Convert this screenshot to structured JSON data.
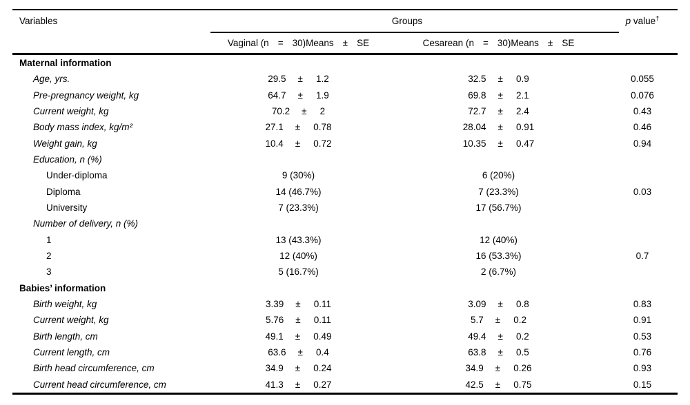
{
  "table": {
    "pm": "±",
    "header": {
      "variables_label": "Variables",
      "groups_label": "Groups",
      "p_italic": "p",
      "p_rest": " value",
      "p_sup": "†",
      "vaginal_parts": [
        "Vaginal (n",
        "=",
        "30)Means",
        "±",
        "SE"
      ],
      "cesarean_parts": [
        "Cesarean (n",
        "=",
        "30)Means",
        "±",
        "SE"
      ]
    },
    "rows": [
      {
        "label": "Maternal information",
        "style": "section",
        "indent": 0,
        "vaginal": null,
        "cesarean": null,
        "p": ""
      },
      {
        "label": "Age, yrs.",
        "style": "var",
        "indent": 1,
        "vaginal": {
          "mean": "29.5",
          "se": "1.2"
        },
        "cesarean": {
          "mean": "32.5",
          "se": "0.9"
        },
        "p": "0.055"
      },
      {
        "label": "Pre-pregnancy weight, kg",
        "style": "var",
        "indent": 1,
        "vaginal": {
          "mean": "64.7",
          "se": "1.9"
        },
        "cesarean": {
          "mean": "69.8",
          "se": "2.1"
        },
        "p": "0.076"
      },
      {
        "label": "Current weight, kg",
        "style": "var",
        "indent": 1,
        "vaginal": {
          "mean": "70.2",
          "se": "2"
        },
        "cesarean": {
          "mean": "72.7",
          "se": "2.4"
        },
        "p": "0.43"
      },
      {
        "label": "Body mass index, kg/m²",
        "style": "var",
        "indent": 1,
        "vaginal": {
          "mean": "27.1",
          "se": "0.78"
        },
        "cesarean": {
          "mean": "28.04",
          "se": "0.91"
        },
        "p": "0.46"
      },
      {
        "label": "Weight gain, kg",
        "style": "var",
        "indent": 1,
        "vaginal": {
          "mean": "10.4",
          "se": "0.72"
        },
        "cesarean": {
          "mean": "10.35",
          "se": "0.47"
        },
        "p": "0.94"
      },
      {
        "label": "Education, n (%)",
        "style": "var",
        "indent": 1,
        "vaginal": null,
        "cesarean": null,
        "p": ""
      },
      {
        "label": "Under-diploma",
        "style": "plain",
        "indent": 2,
        "vaginal": "9 (30%)",
        "cesarean": "6 (20%)",
        "p": ""
      },
      {
        "label": "Diploma",
        "style": "plain",
        "indent": 2,
        "vaginal": "14 (46.7%)",
        "cesarean": "7 (23.3%)",
        "p": "0.03"
      },
      {
        "label": "University",
        "style": "plain",
        "indent": 2,
        "vaginal": "7 (23.3%)",
        "cesarean": "17 (56.7%)",
        "p": ""
      },
      {
        "label": "Number of delivery, n (%)",
        "style": "var",
        "indent": 1,
        "vaginal": null,
        "cesarean": null,
        "p": ""
      },
      {
        "label": "1",
        "style": "plain",
        "indent": 2,
        "vaginal": "13 (43.3%)",
        "cesarean": "12 (40%)",
        "p": ""
      },
      {
        "label": "2",
        "style": "plain",
        "indent": 2,
        "vaginal": "12 (40%)",
        "cesarean": "16 (53.3%)",
        "p": "0.7"
      },
      {
        "label": "3",
        "style": "plain",
        "indent": 2,
        "vaginal": "5 (16.7%)",
        "cesarean": "2 (6.7%)",
        "p": ""
      },
      {
        "label": "Babies’ information",
        "style": "section",
        "indent": 0,
        "vaginal": null,
        "cesarean": null,
        "p": ""
      },
      {
        "label": "Birth weight, kg",
        "style": "var",
        "indent": 1,
        "vaginal": {
          "mean": "3.39",
          "se": "0.11"
        },
        "cesarean": {
          "mean": "3.09",
          "se": "0.8"
        },
        "p": "0.83"
      },
      {
        "label": "Current weight, kg",
        "style": "var",
        "indent": 1,
        "vaginal": {
          "mean": "5.76",
          "se": "0.11"
        },
        "cesarean": {
          "mean": "5.7",
          "se": "0.2"
        },
        "p": "0.91"
      },
      {
        "label": "Birth length, cm",
        "style": "var",
        "indent": 1,
        "vaginal": {
          "mean": "49.1",
          "se": "0.49"
        },
        "cesarean": {
          "mean": "49.4",
          "se": "0.2"
        },
        "p": "0.53"
      },
      {
        "label": "Current length, cm",
        "style": "var",
        "indent": 1,
        "vaginal": {
          "mean": "63.6",
          "se": "0.4"
        },
        "cesarean": {
          "mean": "63.8",
          "se": "0.5"
        },
        "p": "0.76"
      },
      {
        "label": "Birth head circumference, cm",
        "style": "var",
        "indent": 1,
        "vaginal": {
          "mean": "34.9",
          "se": "0.24"
        },
        "cesarean": {
          "mean": "34.9",
          "se": "0.26"
        },
        "p": "0.93"
      },
      {
        "label": "Current head circumference, cm",
        "style": "var",
        "indent": 1,
        "vaginal": {
          "mean": "41.3",
          "se": "0.27"
        },
        "cesarean": {
          "mean": "42.5",
          "se": "0.75"
        },
        "p": "0.15"
      }
    ]
  }
}
